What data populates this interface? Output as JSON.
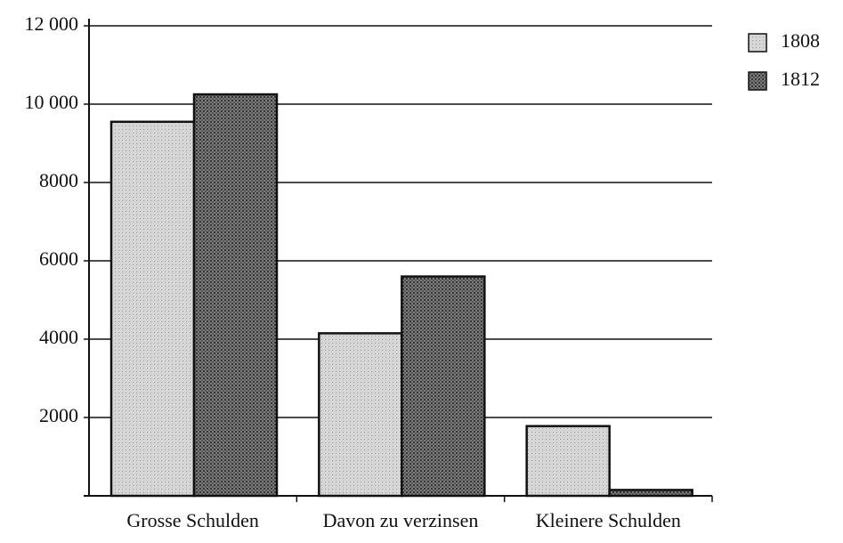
{
  "chart_data": {
    "type": "bar",
    "categories": [
      "Grosse Schulden",
      "Davon zu verzinsen",
      "Kleinere Schulden"
    ],
    "series": [
      {
        "name": "1808",
        "color": "#d6d6d6",
        "values": [
          9550,
          4150,
          1780
        ]
      },
      {
        "name": "1812",
        "color": "#7c7c7c",
        "values": [
          10250,
          5600,
          150
        ]
      }
    ],
    "ylim": [
      0,
      12000
    ],
    "yticks": [
      2000,
      4000,
      6000,
      8000,
      {
        "value": 10000,
        "label": "10 000"
      },
      {
        "value": 12000,
        "label": "12 000"
      }
    ],
    "grid": true,
    "legend": "right"
  }
}
